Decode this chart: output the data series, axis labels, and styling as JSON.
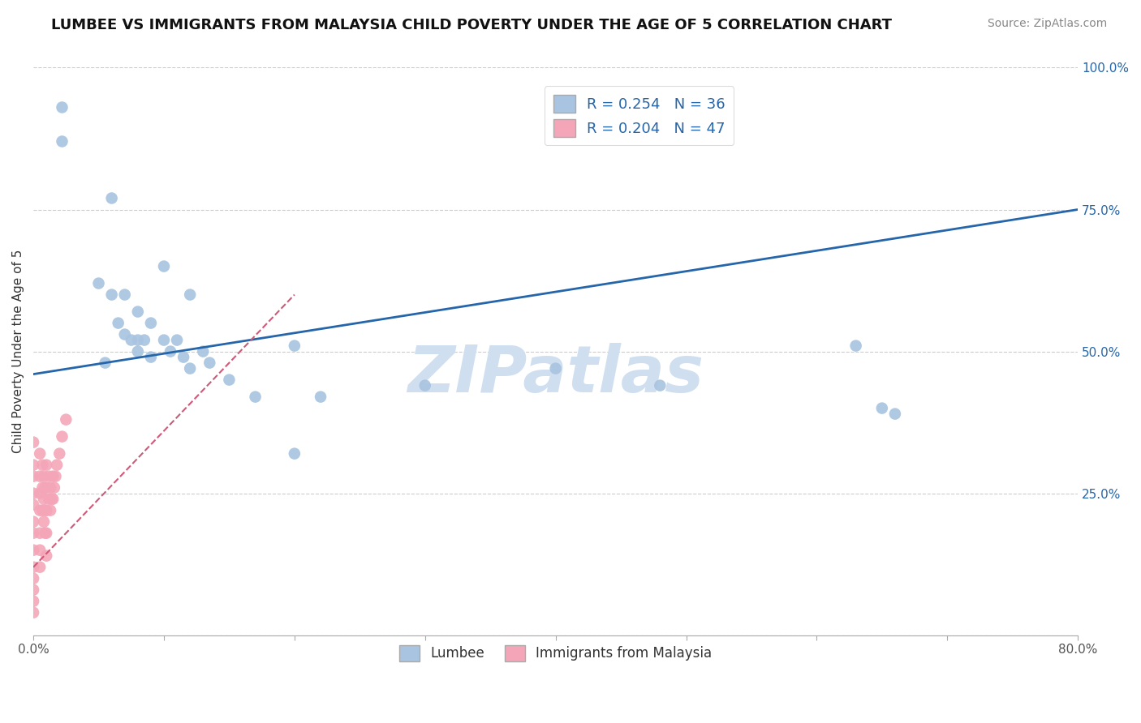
{
  "title": "LUMBEE VS IMMIGRANTS FROM MALAYSIA CHILD POVERTY UNDER THE AGE OF 5 CORRELATION CHART",
  "source": "Source: ZipAtlas.com",
  "ylabel": "Child Poverty Under the Age of 5",
  "xlim": [
    0,
    0.8
  ],
  "ylim": [
    0,
    1.0
  ],
  "xticks": [
    0.0,
    0.1,
    0.2,
    0.3,
    0.4,
    0.5,
    0.6,
    0.7,
    0.8
  ],
  "yticks": [
    0.0,
    0.25,
    0.5,
    0.75,
    1.0
  ],
  "lumbee_R": 0.254,
  "lumbee_N": 36,
  "malaysia_R": 0.204,
  "malaysia_N": 47,
  "lumbee_color": "#a8c4e0",
  "lumbee_line_color": "#2566ab",
  "malaysia_color": "#f4a6b8",
  "malaysia_line_color": "#d05878",
  "watermark": "ZIPatlas",
  "watermark_color": "#d0dff0",
  "lumbee_x": [
    0.022,
    0.022,
    0.06,
    0.1,
    0.12,
    0.05,
    0.06,
    0.07,
    0.08,
    0.065,
    0.07,
    0.08,
    0.09,
    0.075,
    0.08,
    0.085,
    0.09,
    0.1,
    0.105,
    0.11,
    0.115,
    0.12,
    0.13,
    0.135,
    0.15,
    0.17,
    0.2,
    0.22,
    0.3,
    0.4,
    0.48,
    0.63,
    0.65,
    0.66,
    0.2,
    0.055
  ],
  "lumbee_y": [
    0.93,
    0.87,
    0.77,
    0.65,
    0.6,
    0.62,
    0.6,
    0.6,
    0.57,
    0.55,
    0.53,
    0.52,
    0.55,
    0.52,
    0.5,
    0.52,
    0.49,
    0.52,
    0.5,
    0.52,
    0.49,
    0.47,
    0.5,
    0.48,
    0.45,
    0.42,
    0.51,
    0.42,
    0.44,
    0.47,
    0.44,
    0.51,
    0.4,
    0.39,
    0.32,
    0.48
  ],
  "malaysia_x": [
    0.0,
    0.0,
    0.0,
    0.0,
    0.0,
    0.0,
    0.0,
    0.0,
    0.0,
    0.0,
    0.0,
    0.0,
    0.0,
    0.005,
    0.005,
    0.005,
    0.005,
    0.005,
    0.005,
    0.005,
    0.007,
    0.007,
    0.007,
    0.008,
    0.008,
    0.008,
    0.009,
    0.009,
    0.009,
    0.01,
    0.01,
    0.01,
    0.01,
    0.01,
    0.012,
    0.012,
    0.013,
    0.013,
    0.014,
    0.015,
    0.015,
    0.016,
    0.017,
    0.018,
    0.02,
    0.022,
    0.025
  ],
  "malaysia_y": [
    0.34,
    0.3,
    0.28,
    0.25,
    0.23,
    0.2,
    0.18,
    0.15,
    0.12,
    0.1,
    0.08,
    0.06,
    0.04,
    0.32,
    0.28,
    0.25,
    0.22,
    0.18,
    0.15,
    0.12,
    0.3,
    0.26,
    0.22,
    0.28,
    0.24,
    0.2,
    0.26,
    0.22,
    0.18,
    0.3,
    0.26,
    0.22,
    0.18,
    0.14,
    0.28,
    0.24,
    0.26,
    0.22,
    0.24,
    0.28,
    0.24,
    0.26,
    0.28,
    0.3,
    0.32,
    0.35,
    0.38
  ],
  "lumbee_trendline": [
    0.46,
    0.75
  ],
  "malaysia_trendline_x": [
    0.0,
    0.2
  ],
  "malaysia_trendline_y": [
    0.12,
    0.6
  ]
}
